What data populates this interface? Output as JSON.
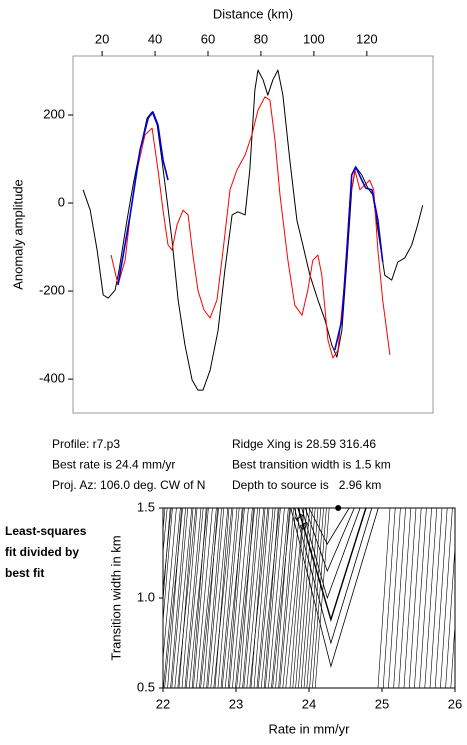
{
  "chart_data": [
    {
      "type": "line",
      "xlabel": "Distance (km)",
      "ylabel": "Anomaly amplitude",
      "xlim": [
        9,
        145
      ],
      "ylim": [
        -477,
        334
      ],
      "xticks": [
        20,
        40,
        60,
        80,
        100,
        120
      ],
      "yticks": [
        -400,
        -200,
        0,
        200
      ],
      "series": [
        {
          "color": "#000000",
          "x": [
            12.8,
            15.5,
            18.1,
            20.4,
            22.3,
            24.9,
            26.4,
            29.4,
            31.7,
            34.3,
            37.0,
            38.9,
            40.8,
            42.6,
            44.5,
            46.4,
            48.7,
            51.3,
            54.0,
            56.2,
            58.1,
            60.8,
            63.8,
            66.4,
            69.1,
            71.3,
            74.0,
            75.8,
            77.7,
            78.9,
            80.8,
            82.6,
            84.5,
            86.4,
            88.3,
            90.9,
            93.6,
            95.8,
            98.5,
            101.5,
            104.2,
            106.8,
            108.7,
            110.6,
            112.5,
            114.3,
            115.8,
            118.1,
            120.4,
            122.3,
            124.2,
            126.8,
            129.4,
            131.7,
            134.3,
            137.0,
            139.2,
            141.1
          ],
          "values": [
            30,
            -16,
            -107,
            -209,
            -216,
            -198,
            -152,
            -39,
            41,
            120,
            193,
            207,
            177,
            98,
            7,
            -84,
            -220,
            -323,
            -402,
            -425,
            -425,
            -380,
            -289,
            -152,
            -27,
            -20,
            -27,
            75,
            257,
            302,
            280,
            245,
            280,
            302,
            245,
            98,
            -39,
            -95,
            -164,
            -220,
            -266,
            -323,
            -350,
            -289,
            -130,
            30,
            82,
            64,
            34,
            18,
            -61,
            -164,
            -175,
            -134,
            -125,
            -95,
            -50,
            -5
          ]
        },
        {
          "color": "#ff0000",
          "x": [
            23.4,
            26.0,
            28.7,
            30.6,
            33.2,
            36.2,
            38.9,
            41.1,
            43.0,
            44.9,
            46.4,
            48.3,
            50.6,
            52.5,
            54.3,
            56.2,
            58.5,
            60.8,
            63.4,
            65.7,
            68.3,
            70.9,
            74.0,
            76.6,
            78.9,
            81.5,
            83.4,
            85.3,
            87.2,
            90.2,
            92.8,
            95.5,
            97.7,
            99.6,
            101.5,
            103.0,
            105.3,
            107.2,
            109.1,
            111.3,
            113.6,
            115.5,
            117.4,
            119.2,
            121.1,
            122.6,
            124.2,
            126.0,
            128.7
          ],
          "values": [
            -118,
            -186,
            -130,
            -27,
            75,
            155,
            170,
            75,
            -16,
            -95,
            -107,
            -50,
            -16,
            -27,
            -118,
            -198,
            -243,
            -261,
            -220,
            -107,
            30,
            75,
            109,
            155,
            211,
            241,
            234,
            143,
            18,
            -130,
            -232,
            -255,
            -198,
            -130,
            -118,
            -164,
            -311,
            -352,
            -334,
            -198,
            7,
            75,
            30,
            41,
            52,
            30,
            -107,
            -220,
            -345
          ]
        },
        {
          "color": "#0000dd",
          "x": [
            26.0,
            30.6,
            34.3,
            37.4,
            39.2,
            41.1,
            43.0,
            44.9,
            null,
            107.9,
            110.6,
            112.5,
            114.3,
            115.8,
            118.1,
            119.6,
            121.9,
            124.2,
            126.0
          ],
          "values": [
            -186,
            -27,
            120,
            193,
            207,
            177,
            98,
            52,
            null,
            -334,
            -266,
            -107,
            64,
            82,
            52,
            34,
            30,
            -39,
            -134
          ]
        }
      ]
    },
    {
      "type": "contour",
      "xlabel": "Rate in mm/yr",
      "ylabel": "Transition width in km",
      "xlim": [
        22,
        26
      ],
      "ylim": [
        0.5,
        1.5
      ],
      "xticks": [
        22,
        23,
        24,
        25,
        26
      ],
      "yticks": [
        {
          "value": 0.5,
          "label": "0.5"
        },
        {
          "value": 1,
          "label": "1.0"
        },
        {
          "value": 1.5,
          "label": "1.5"
        }
      ],
      "contour_label": "1.5",
      "contours": [
        {
          "x": [
            24.0,
            24.25,
            24.55
          ],
          "y": [
            1.5,
            1.3,
            1.5
          ]
        },
        {
          "x": [
            23.95,
            24.25,
            24.62
          ],
          "y": [
            1.5,
            1.15,
            1.5
          ]
        },
        {
          "x": [
            23.9,
            24.25,
            24.7
          ],
          "y": [
            1.5,
            1.0,
            1.5
          ]
        },
        {
          "x": [
            23.85,
            24.3,
            24.78
          ],
          "y": [
            1.5,
            0.88,
            1.5
          ]
        },
        {
          "x": [
            23.8,
            24.3,
            24.86
          ],
          "y": [
            1.5,
            0.75,
            1.5
          ]
        },
        {
          "x": [
            23.75,
            24.3,
            24.95
          ],
          "y": [
            1.5,
            0.62,
            1.5
          ]
        }
      ],
      "marker": {
        "x": 24.4,
        "y": 1.5
      }
    }
  ],
  "info": {
    "left": [
      "Profile: r7.p3",
      "Best rate is 24.4 mm/yr",
      "Proj. Az: 106.0 deg. CW of N"
    ],
    "right": [
      "Ridge Xing is 28.59 316.46",
      "Best transition width is 1.5 km",
      "Depth to source is   2.96 km"
    ]
  },
  "side_note": [
    "Least-squares",
    "fit divided by",
    "best fit"
  ]
}
